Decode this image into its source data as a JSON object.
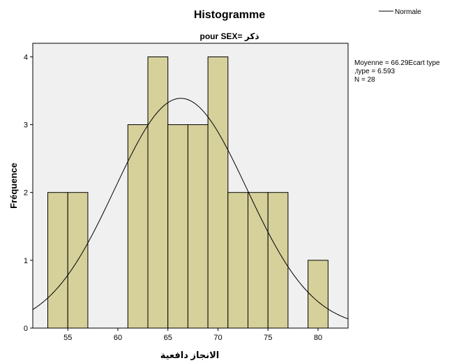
{
  "chart_data": {
    "type": "histogram",
    "title": "Histogramme",
    "subtitle": "pour SEX= ذكر",
    "xlabel": "الانجاز دافعية",
    "ylabel": "Fréquence",
    "xlim": [
      51.5,
      83
    ],
    "ylim": [
      0,
      4.2
    ],
    "bin_width": 2,
    "bins": [
      {
        "start": 53,
        "end": 55,
        "count": 2
      },
      {
        "start": 55,
        "end": 57,
        "count": 2
      },
      {
        "start": 57,
        "end": 59,
        "count": 0
      },
      {
        "start": 59,
        "end": 61,
        "count": 0
      },
      {
        "start": 61,
        "end": 63,
        "count": 3
      },
      {
        "start": 63,
        "end": 65,
        "count": 4
      },
      {
        "start": 65,
        "end": 67,
        "count": 3
      },
      {
        "start": 67,
        "end": 69,
        "count": 3
      },
      {
        "start": 69,
        "end": 71,
        "count": 4
      },
      {
        "start": 71,
        "end": 73,
        "count": 2
      },
      {
        "start": 73,
        "end": 75,
        "count": 2
      },
      {
        "start": 75,
        "end": 77,
        "count": 2
      },
      {
        "start": 77,
        "end": 79,
        "count": 0
      },
      {
        "start": 79,
        "end": 81,
        "count": 1
      }
    ],
    "x_ticks": [
      55,
      60,
      65,
      70,
      75,
      80
    ],
    "y_ticks": [
      0,
      1,
      2,
      3,
      4
    ],
    "normal_curve": {
      "mean": 66.29,
      "sd": 6.593,
      "n": 28
    },
    "legend": {
      "label": "Normale",
      "position": "top-right"
    },
    "stats_lines": [
      "Moyenne = 66.29Ecart type",
      ",type = 6.593",
      "N = 28"
    ],
    "colors": {
      "bar_fill": "#d6d19b",
      "bar_stroke": "#000000",
      "plot_bg": "#f0f0f0",
      "curve": "#000000"
    }
  }
}
